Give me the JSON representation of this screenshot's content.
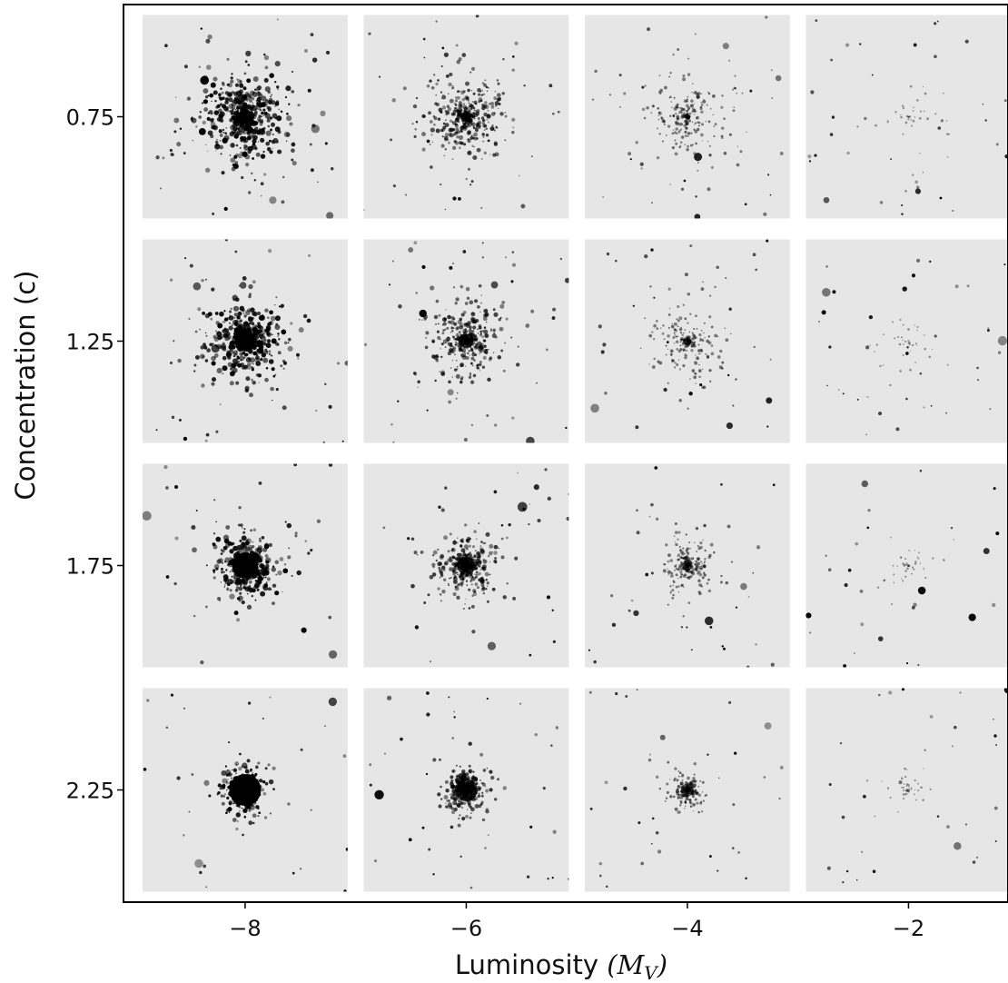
{
  "chart_data": {
    "type": "image-grid",
    "xlabel": "Luminosity ",
    "xlabel_math": "(M",
    "xlabel_math_sub": "V",
    "xlabel_math_close": ")",
    "ylabel": "Concentration (c)",
    "x_ticks": [
      {
        "value": -8,
        "label": "−8"
      },
      {
        "value": -6,
        "label": "−6"
      },
      {
        "value": -4,
        "label": "−4"
      },
      {
        "value": -2,
        "label": "−2"
      }
    ],
    "y_ticks": [
      {
        "value": 0.75,
        "label": "0.75"
      },
      {
        "value": 1.25,
        "label": "1.25"
      },
      {
        "value": 1.75,
        "label": "1.75"
      },
      {
        "value": 2.25,
        "label": "2.25"
      }
    ],
    "xlim": [
      -9.1,
      -1.1
    ],
    "ylim": [
      0.5,
      2.5
    ],
    "panel_background": "#e6e6e6",
    "star_color": "#000000",
    "panels": [
      {
        "luminosity": -8,
        "concentration": 0.75
      },
      {
        "luminosity": -6,
        "concentration": 0.75
      },
      {
        "luminosity": -4,
        "concentration": 0.75
      },
      {
        "luminosity": -2,
        "concentration": 0.75
      },
      {
        "luminosity": -8,
        "concentration": 1.25
      },
      {
        "luminosity": -6,
        "concentration": 1.25
      },
      {
        "luminosity": -4,
        "concentration": 1.25
      },
      {
        "luminosity": -2,
        "concentration": 1.25
      },
      {
        "luminosity": -8,
        "concentration": 1.75
      },
      {
        "luminosity": -6,
        "concentration": 1.75
      },
      {
        "luminosity": -4,
        "concentration": 1.75
      },
      {
        "luminosity": -2,
        "concentration": 1.75
      },
      {
        "luminosity": -8,
        "concentration": 2.25
      },
      {
        "luminosity": -6,
        "concentration": 2.25
      },
      {
        "luminosity": -4,
        "concentration": 2.25
      },
      {
        "luminosity": -2,
        "concentration": 2.25
      }
    ]
  }
}
